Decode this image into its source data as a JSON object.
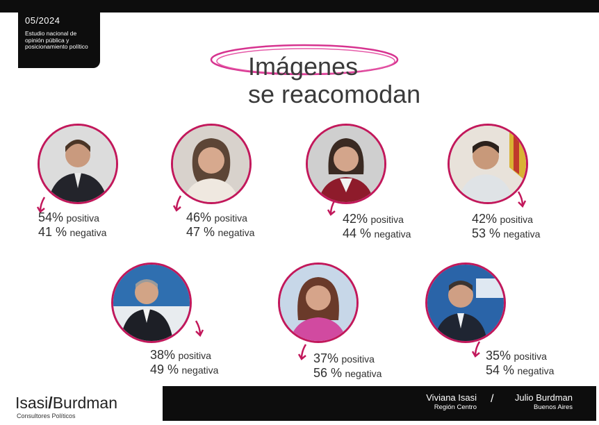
{
  "header": {
    "date": "05/2024",
    "description": "Estudio nacional de opinión pública y posicionamiento político"
  },
  "title": {
    "line1": "Imágenes",
    "line2": "se reacomodan"
  },
  "accent_color": "#c2185b",
  "people": [
    {
      "positive": "54%",
      "negative": "41 %",
      "positive_label": "positiva",
      "negative_label": "negativa"
    },
    {
      "positive": "46%",
      "negative": "47 %",
      "positive_label": "positiva",
      "negative_label": "negativa"
    },
    {
      "positive": "42%",
      "negative": "44 %",
      "positive_label": "positiva",
      "negative_label": "negativa"
    },
    {
      "positive": "42%",
      "negative": "53 %",
      "positive_label": "positiva",
      "negative_label": "negativa"
    },
    {
      "positive": "38%",
      "negative": "49 %",
      "positive_label": "positiva",
      "negative_label": "negativa"
    },
    {
      "positive": "37%",
      "negative": "56 %",
      "positive_label": "positiva",
      "negative_label": "negativa"
    },
    {
      "positive": "35%",
      "negative": "54 %",
      "positive_label": "positiva",
      "negative_label": "negativa"
    }
  ],
  "footer": {
    "brand_left": "Isasi",
    "brand_slash": "/",
    "brand_right": "Burdman",
    "brand_sub": "Consultores Políticos",
    "signatory1_name": "Viviana Isasi",
    "signatory1_region": "Región Centro",
    "separator": "/",
    "signatory2_name": "Julio Burdman",
    "signatory2_region": "Buenos Aires"
  }
}
